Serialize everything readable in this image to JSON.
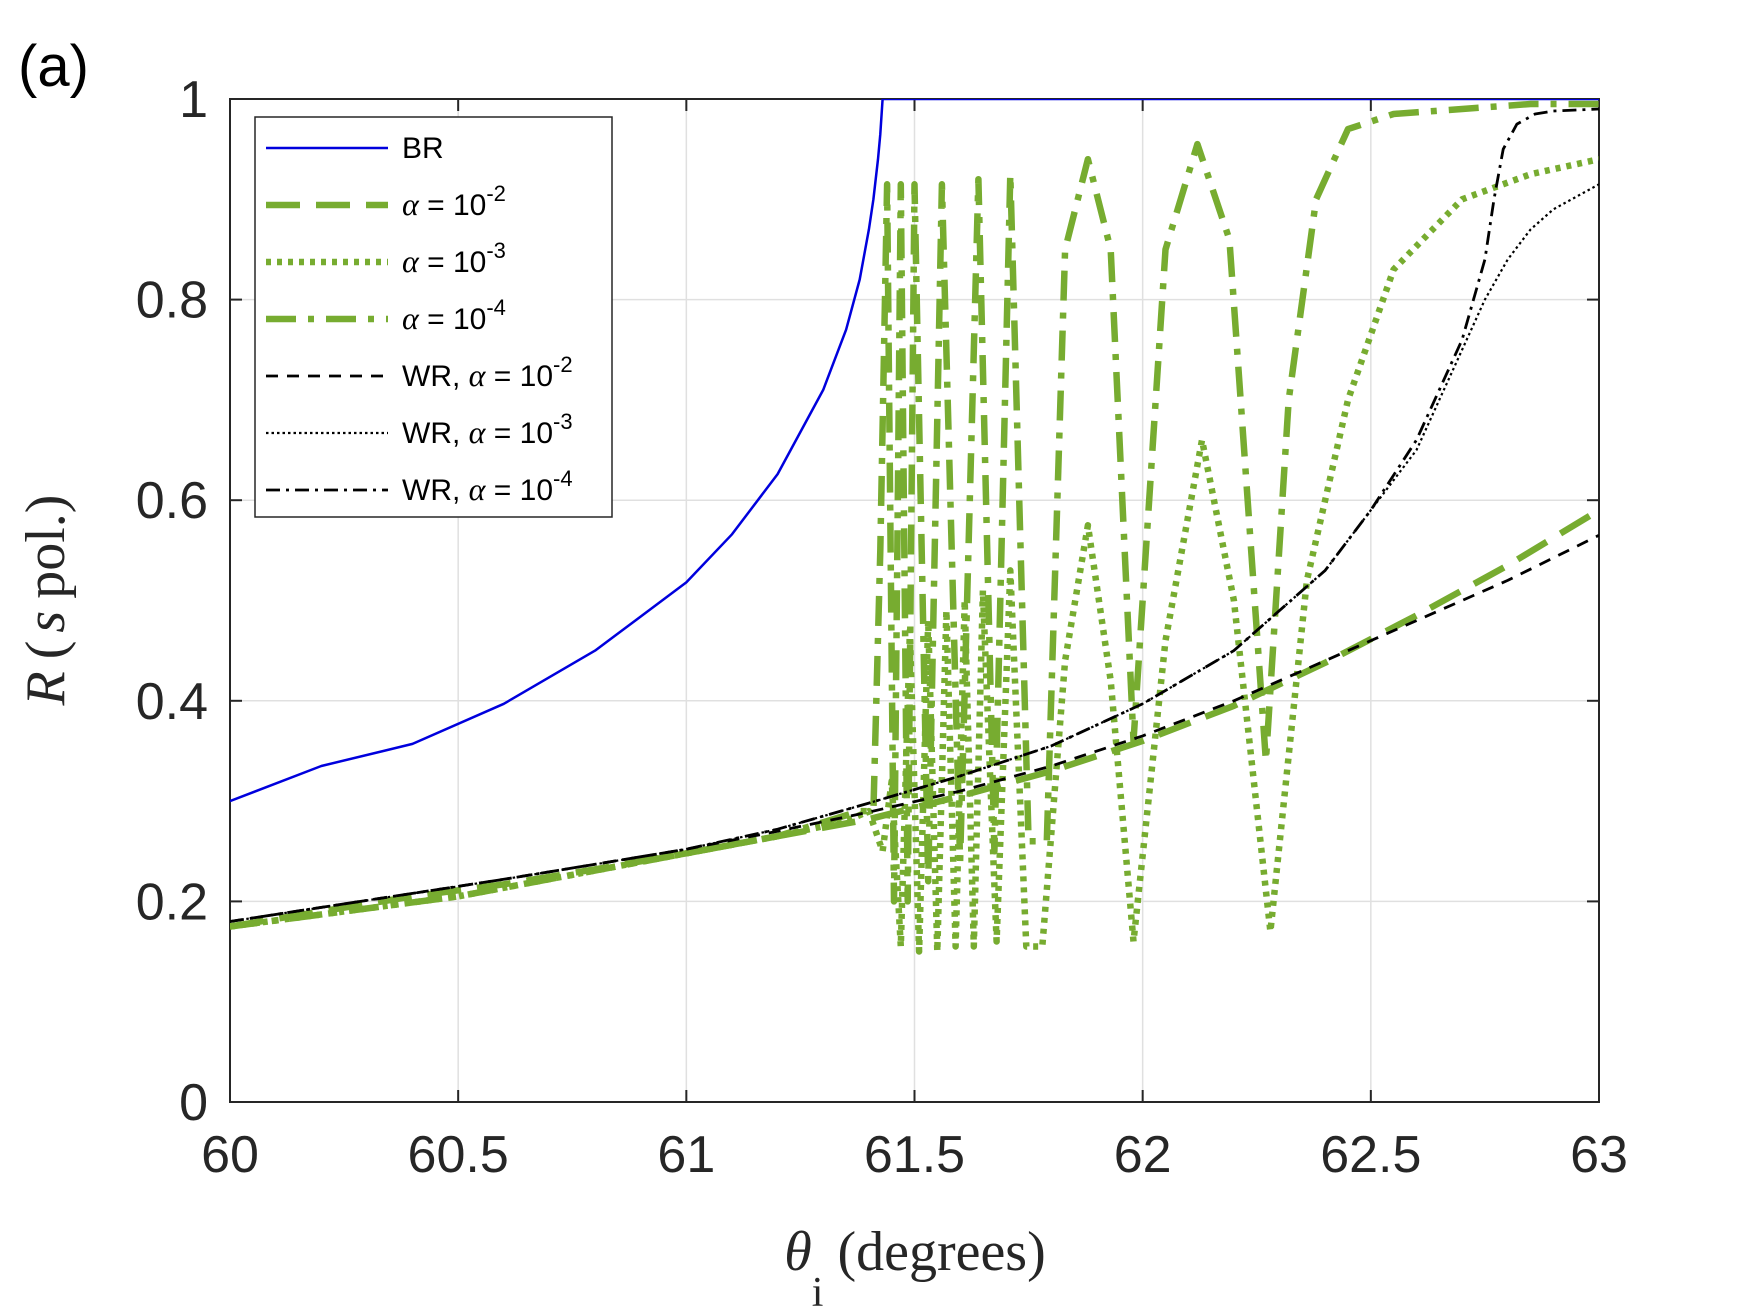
{
  "panel_label": "(a)",
  "chart_data": {
    "type": "line",
    "xlabel_symbol": "θ",
    "xlabel_subscript": "i",
    "xlabel_text": "(degrees)",
    "ylabel_symbol": "R",
    "ylabel_text_open": "(",
    "ylabel_s": "s",
    "ylabel_text_close": "pol.)",
    "xlim": [
      60,
      63
    ],
    "ylim": [
      0,
      1
    ],
    "grid": true,
    "legend_position": "top-left",
    "x_ticks": [
      {
        "value": 60,
        "label": "60"
      },
      {
        "value": 60.5,
        "label": "60.5"
      },
      {
        "value": 61,
        "label": "61"
      },
      {
        "value": 61.5,
        "label": "61.5"
      },
      {
        "value": 62,
        "label": "62"
      },
      {
        "value": 62.5,
        "label": "62.5"
      },
      {
        "value": 63,
        "label": "63"
      }
    ],
    "y_ticks": [
      {
        "value": 0,
        "label": "0"
      },
      {
        "value": 0.2,
        "label": "0.2"
      },
      {
        "value": 0.4,
        "label": "0.4"
      },
      {
        "value": 0.6,
        "label": "0.6"
      },
      {
        "value": 0.8,
        "label": "0.8"
      },
      {
        "value": 1,
        "label": "1"
      }
    ],
    "series": [
      {
        "id": "br",
        "legend": {
          "prefix": "BR",
          "alpha": "",
          "eq": "",
          "exp": ""
        },
        "color": "#0000dd",
        "style": "solid",
        "x": [
          60,
          60.2,
          60.4,
          60.6,
          60.8,
          61,
          61.1,
          61.2,
          61.3,
          61.35,
          61.38,
          61.4,
          61.41,
          61.42,
          61.425,
          61.43,
          63
        ],
        "y": [
          0.3,
          0.335,
          0.357,
          0.397,
          0.45,
          0.518,
          0.566,
          0.626,
          0.71,
          0.77,
          0.82,
          0.87,
          0.9,
          0.94,
          0.965,
          1.0,
          1.0
        ]
      },
      {
        "id": "a1",
        "legend": {
          "prefix": "",
          "alpha": "α",
          "eq": " = 10",
          "exp": "-2"
        },
        "color": "#77ac30",
        "style": "dashed-thick",
        "x": [
          60,
          60.2,
          60.4,
          60.6,
          60.8,
          61,
          61.2,
          61.4,
          61.6,
          61.8,
          62,
          62.2,
          62.4,
          62.6,
          62.8,
          63
        ],
        "y": [
          0.175,
          0.19,
          0.205,
          0.217,
          0.232,
          0.248,
          0.265,
          0.282,
          0.305,
          0.33,
          0.36,
          0.395,
          0.438,
          0.485,
          0.535,
          0.59
        ]
      },
      {
        "id": "a2",
        "legend": {
          "prefix": "",
          "alpha": "α",
          "eq": " = 10",
          "exp": "-3"
        },
        "color": "#77ac30",
        "style": "dotted-thick",
        "x": [
          60,
          60.5,
          61,
          61.2,
          61.35,
          61.4,
          61.43,
          61.45,
          61.47,
          61.49,
          61.51,
          61.53,
          61.55,
          61.57,
          61.59,
          61.61,
          61.63,
          61.65,
          61.68,
          61.71,
          61.745,
          61.78,
          61.83,
          61.88,
          61.93,
          61.98,
          62.05,
          62.13,
          62.2,
          62.28,
          62.36,
          62.45,
          62.55,
          62.7,
          62.85,
          63
        ],
        "y": [
          0.175,
          0.205,
          0.248,
          0.265,
          0.28,
          0.29,
          0.25,
          0.32,
          0.155,
          0.47,
          0.15,
          0.48,
          0.15,
          0.49,
          0.155,
          0.5,
          0.155,
          0.51,
          0.16,
          0.53,
          0.155,
          0.155,
          0.44,
          0.575,
          0.42,
          0.16,
          0.46,
          0.66,
          0.5,
          0.17,
          0.52,
          0.7,
          0.83,
          0.9,
          0.925,
          0.94
        ]
      },
      {
        "id": "a3",
        "legend": {
          "prefix": "",
          "alpha": "α",
          "eq": " = 10",
          "exp": "-4"
        },
        "color": "#77ac30",
        "style": "dashdot-thick",
        "x": [
          60,
          60.5,
          61,
          61.2,
          61.38,
          61.41,
          61.425,
          61.44,
          61.455,
          61.47,
          61.485,
          61.5,
          61.53,
          61.56,
          61.6,
          61.64,
          61.675,
          61.71,
          61.75,
          61.79,
          61.83,
          61.88,
          61.93,
          61.98,
          62.05,
          62.12,
          62.19,
          62.27,
          62.32,
          62.38,
          62.45,
          62.55,
          62.7,
          62.85,
          63
        ],
        "y": [
          0.175,
          0.205,
          0.248,
          0.265,
          0.29,
          0.29,
          0.55,
          0.915,
          0.2,
          0.915,
          0.2,
          0.915,
          0.22,
          0.915,
          0.24,
          0.92,
          0.25,
          0.925,
          0.26,
          0.26,
          0.85,
          0.94,
          0.85,
          0.36,
          0.85,
          0.955,
          0.86,
          0.34,
          0.7,
          0.9,
          0.97,
          0.985,
          0.99,
          0.995,
          0.995
        ]
      },
      {
        "id": "w1",
        "legend": {
          "prefix": "WR, ",
          "alpha": "α",
          "eq": " = 10",
          "exp": "-2"
        },
        "color": "#000000",
        "style": "dashed",
        "x": [
          60,
          60.2,
          60.4,
          60.6,
          60.8,
          61,
          61.2,
          61.4,
          61.6,
          61.8,
          62,
          62.2,
          62.4,
          62.6,
          62.8,
          63
        ],
        "y": [
          0.18,
          0.194,
          0.208,
          0.222,
          0.237,
          0.252,
          0.27,
          0.289,
          0.31,
          0.335,
          0.365,
          0.4,
          0.44,
          0.48,
          0.52,
          0.565
        ]
      },
      {
        "id": "w2",
        "legend": {
          "prefix": "WR, ",
          "alpha": "α",
          "eq": " = 10",
          "exp": "-3"
        },
        "color": "#000000",
        "style": "dotted",
        "x": [
          60,
          60.2,
          60.4,
          60.6,
          60.8,
          61,
          61.2,
          61.4,
          61.6,
          61.8,
          62,
          62.2,
          62.4,
          62.5,
          62.6,
          62.7,
          62.75,
          62.8,
          62.85,
          62.9,
          63
        ],
        "y": [
          0.18,
          0.194,
          0.208,
          0.222,
          0.237,
          0.252,
          0.272,
          0.298,
          0.325,
          0.355,
          0.397,
          0.45,
          0.53,
          0.59,
          0.65,
          0.75,
          0.8,
          0.84,
          0.87,
          0.89,
          0.915
        ]
      },
      {
        "id": "w3",
        "legend": {
          "prefix": "WR, ",
          "alpha": "α",
          "eq": " = 10",
          "exp": "-4"
        },
        "color": "#000000",
        "style": "dashdot",
        "x": [
          60,
          60.2,
          60.4,
          60.6,
          60.8,
          61,
          61.2,
          61.4,
          61.6,
          61.8,
          62,
          62.2,
          62.4,
          62.5,
          62.6,
          62.7,
          62.75,
          62.77,
          62.79,
          62.82,
          62.86,
          62.9,
          63
        ],
        "y": [
          0.18,
          0.194,
          0.208,
          0.222,
          0.237,
          0.252,
          0.272,
          0.298,
          0.325,
          0.355,
          0.397,
          0.45,
          0.53,
          0.59,
          0.66,
          0.76,
          0.84,
          0.9,
          0.95,
          0.975,
          0.985,
          0.988,
          0.99
        ]
      }
    ]
  }
}
